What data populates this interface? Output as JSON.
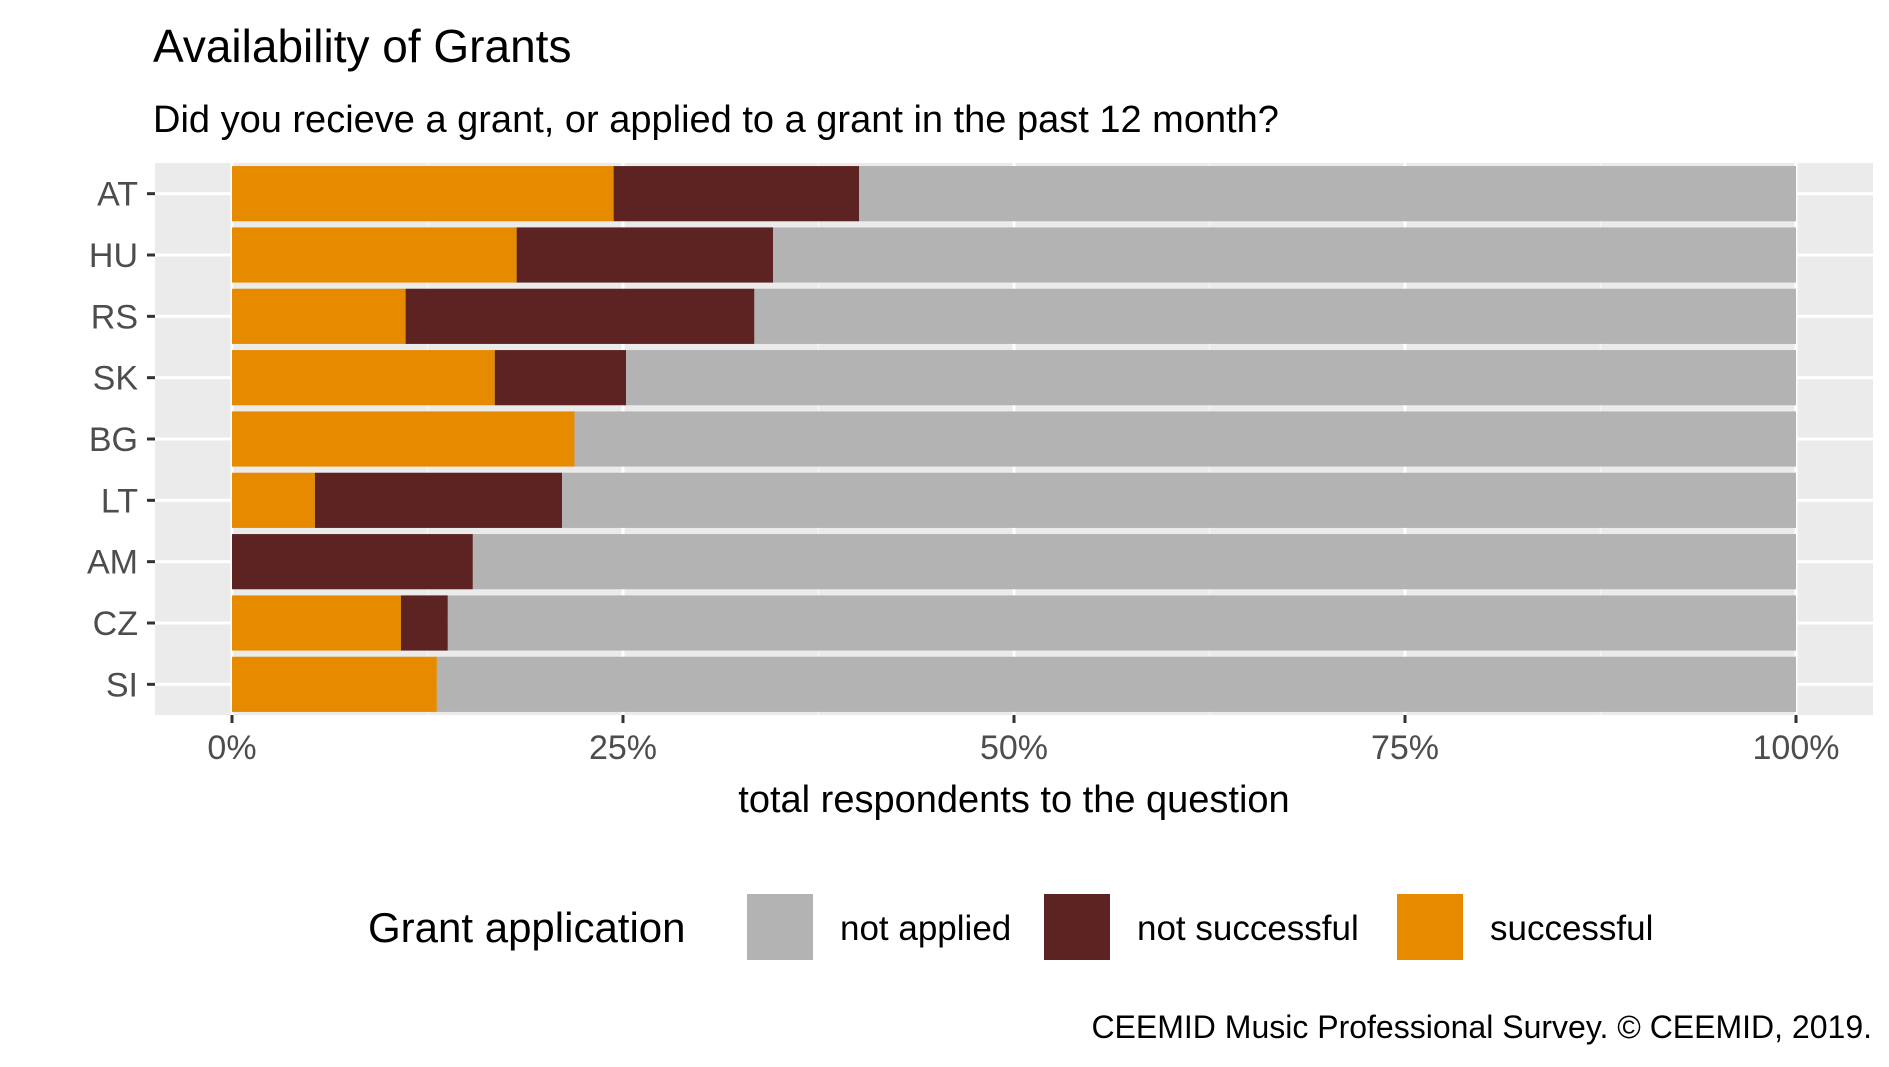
{
  "chart_data": {
    "type": "bar",
    "orientation": "horizontal",
    "stacked": true,
    "title": "Availability of Grants",
    "subtitle": "Did you recieve a grant, or applied to a grant in the past 12 month?",
    "xlabel": "total respondents to the question",
    "ylabel": "",
    "xlim": [
      0,
      1
    ],
    "x_ticks": [
      "0%",
      "25%",
      "50%",
      "75%",
      "100%"
    ],
    "grid": true,
    "categories": [
      "AT",
      "HU",
      "RS",
      "SK",
      "BG",
      "LT",
      "AM",
      "CZ",
      "SI"
    ],
    "series": [
      {
        "name": "successful",
        "color": "#E68A00",
        "values": [
          0.244,
          0.182,
          0.111,
          0.168,
          0.219,
          0.053,
          0.0,
          0.108,
          0.131
        ]
      },
      {
        "name": "not successful",
        "color": "#5C2322",
        "values": [
          0.157,
          0.164,
          0.223,
          0.084,
          0.0,
          0.158,
          0.154,
          0.03,
          0.0
        ]
      },
      {
        "name": "not applied",
        "color": "#B3B3B3",
        "values": [
          0.599,
          0.654,
          0.666,
          0.748,
          0.781,
          0.789,
          0.846,
          0.862,
          0.869
        ]
      }
    ],
    "legend": {
      "title": "Grant application",
      "position": "bottom",
      "order": [
        "not applied",
        "not successful",
        "successful"
      ]
    },
    "caption": "CEEMID Music Professional Survey. © CEEMID, 2019."
  }
}
